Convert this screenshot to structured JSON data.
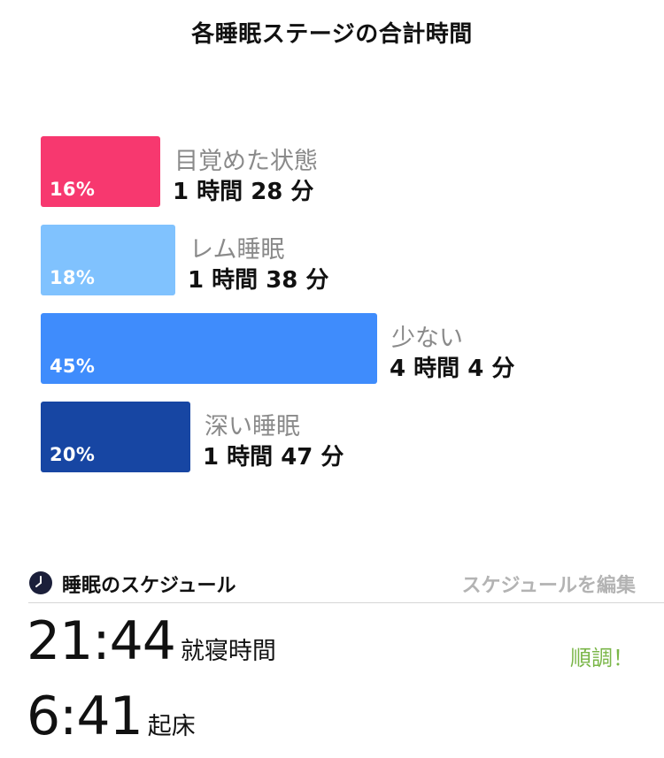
{
  "page_title": "各睡眠ステージの合計時間",
  "colors": {
    "awake": "#f7386f",
    "rem": "#80c2fe",
    "light": "#3f8cfc",
    "deep": "#1746a3",
    "status_ok": "#7ab648"
  },
  "chart_data": {
    "type": "bar",
    "categories": [
      "目覚めた状態",
      "レム睡眠",
      "少ない",
      "深い睡眠"
    ],
    "values": [
      16,
      18,
      45,
      20
    ],
    "value_labels": [
      "16%",
      "18%",
      "45%",
      "20%"
    ],
    "durations": [
      "1 時間 28 分",
      "1 時間 38 分",
      "4 時間 4 分",
      "1 時間 47 分"
    ],
    "title": "各睡眠ステージの合計時間",
    "xlabel": "",
    "ylabel": "",
    "xlim": [
      0,
      100
    ]
  },
  "schedule": {
    "icon": "clock-icon",
    "title": "睡眠のスケジュール",
    "edit_label": "スケジュールを編集",
    "bedtime": "21:44",
    "bedtime_label": "就寝時間",
    "status": "順調！",
    "wake_time": "6:41",
    "wake_label": "起床"
  }
}
